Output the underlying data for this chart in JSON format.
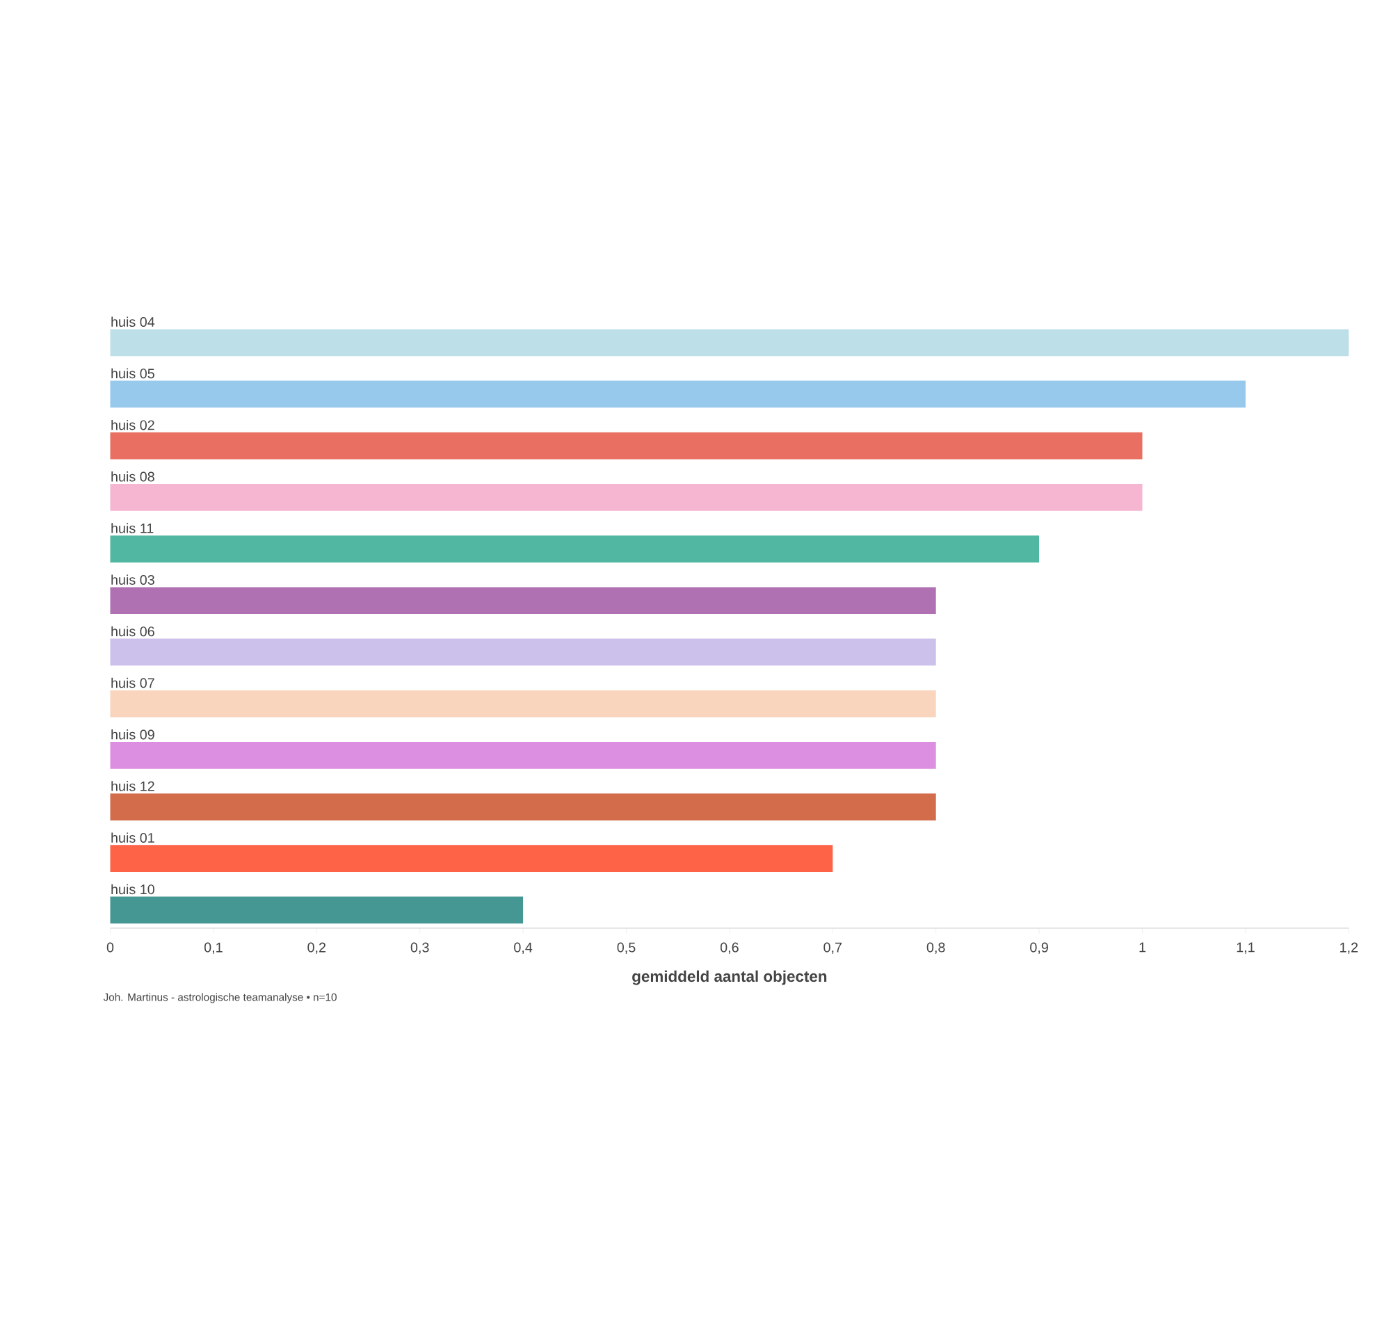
{
  "chart_data": {
    "type": "bar",
    "orientation": "horizontal",
    "xlabel": "gemiddeld aantal objecten",
    "categories": [
      "huis 04",
      "huis 05",
      "huis 02",
      "huis 08",
      "huis 11",
      "huis 03",
      "huis 06",
      "huis 07",
      "huis 09",
      "huis 12",
      "huis 01",
      "huis 10"
    ],
    "values": [
      1.2,
      1.1,
      1.0,
      1.0,
      0.9,
      0.8,
      0.8,
      0.8,
      0.8,
      0.8,
      0.7,
      0.4
    ],
    "colors": [
      "#bde0e8",
      "#97c9ed",
      "#e86f61",
      "#f6b6d2",
      "#52b7a2",
      "#b071b3",
      "#ccc1ea",
      "#fad5be",
      "#dc8fe0",
      "#d26c4b",
      "#ff6347",
      "#459794"
    ],
    "xlim": [
      0,
      1.2
    ],
    "xticks": [
      0,
      {
        "value": 0.1,
        "label": "0,1"
      },
      {
        "value": 0.2,
        "label": "0,2"
      },
      {
        "value": 0.3,
        "label": "0,3"
      },
      {
        "value": 0.4,
        "label": "0,4"
      },
      {
        "value": 0.5,
        "label": "0,5"
      },
      {
        "value": 0.6,
        "label": "0,6"
      },
      {
        "value": 0.7,
        "label": "0,7"
      },
      {
        "value": 0.8,
        "label": "0,8"
      },
      {
        "value": 0.9,
        "label": "0,9"
      },
      1,
      {
        "value": 1.1,
        "label": "1,1"
      },
      {
        "value": 1.2,
        "label": "1,2"
      }
    ],
    "annotations": [
      "Joh. Martinus - astrologische teamanalyse • n=10"
    ]
  }
}
